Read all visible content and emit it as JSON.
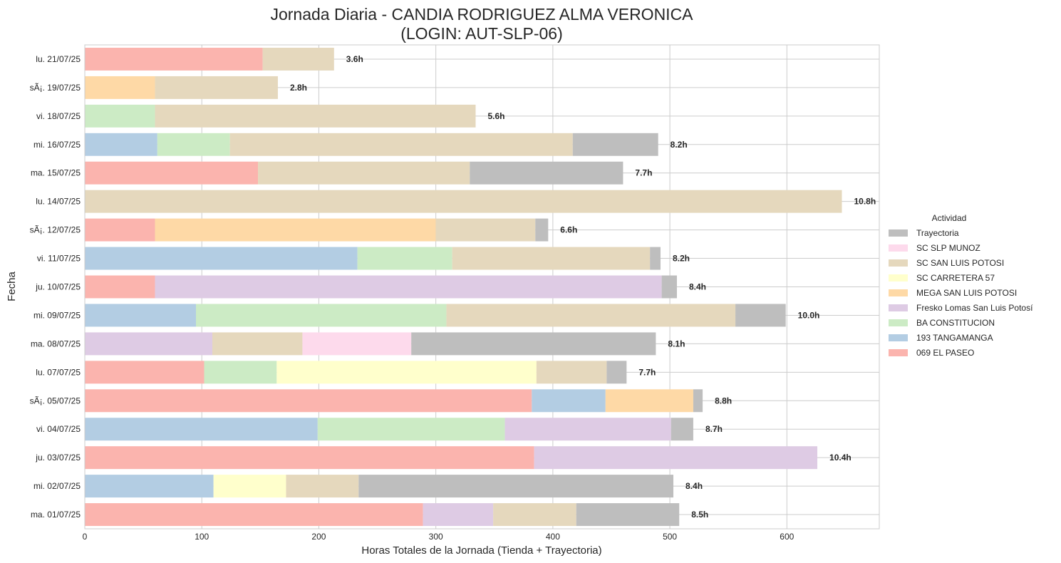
{
  "chart_data": {
    "type": "bar",
    "orientation": "horizontal",
    "stacked": true,
    "title_line1": "Jornada Diaria - CANDIA RODRIGUEZ ALMA VERONICA",
    "title_line2": "(LOGIN: AUT-SLP-06)",
    "xlabel": "Horas Totales de la Jornada (Tienda + Trayectoria)",
    "ylabel": "Fecha",
    "xlim": [
      0,
      680
    ],
    "xticks": [
      0,
      100,
      200,
      300,
      400,
      500,
      600
    ],
    "grid": true,
    "legend": {
      "title": "Actividad",
      "placement": "right",
      "order": [
        "Trayectoria",
        "SC SLP MUNOZ",
        "SC SAN LUIS POTOSI",
        "SC CARRETERA 57",
        "MEGA SAN LUIS POTOSI",
        "Fresko Lomas San Luis Potosí",
        "BA CONSTITUCION",
        "193 TANGAMANGA",
        "069 EL PASEO"
      ]
    },
    "stack_order": [
      "069 EL PASEO",
      "193 TANGAMANGA",
      "BA CONSTITUCION",
      "Fresko Lomas San Luis Potosí",
      "MEGA SAN LUIS POTOSI",
      "SC CARRETERA 57",
      "SC SAN LUIS POTOSI",
      "SC SLP MUNOZ",
      "Trayectoria"
    ],
    "colors": {
      "069 EL PASEO": "#fbb4ae",
      "193 TANGAMANGA": "#b3cde3",
      "BA CONSTITUCION": "#ccebc5",
      "Fresko Lomas San Luis Potosí": "#decbe4",
      "MEGA SAN LUIS POTOSI": "#fed9a6",
      "SC CARRETERA 57": "#ffffcc",
      "SC SAN LUIS POTOSI": "#e5d8bd",
      "SC SLP MUNOZ": "#fddaec",
      "Trayectoria": "#bebebe"
    },
    "categories": [
      "lu. 21/07/25",
      "sÃ¡. 19/07/25",
      "vi. 18/07/25",
      "mi. 16/07/25",
      "ma. 15/07/25",
      "lu. 14/07/25",
      "sÃ¡. 12/07/25",
      "vi. 11/07/25",
      "ju. 10/07/25",
      "mi. 09/07/25",
      "ma. 08/07/25",
      "lu. 07/07/25",
      "sÃ¡. 05/07/25",
      "vi. 04/07/25",
      "ju. 03/07/25",
      "mi. 02/07/25",
      "ma. 01/07/25"
    ],
    "totals": [
      "3.6h",
      "2.8h",
      "5.6h",
      "8.2h",
      "7.7h",
      "10.8h",
      "6.6h",
      "8.2h",
      "8.4h",
      "10.0h",
      "8.1h",
      "7.7h",
      "8.8h",
      "8.7h",
      "10.4h",
      "8.4h",
      "8.5h"
    ],
    "series": [
      {
        "name": "069 EL PASEO",
        "values": [
          152,
          0,
          0,
          0,
          148,
          0,
          60,
          0,
          60,
          0,
          0,
          102,
          382,
          0,
          384,
          0,
          289
        ]
      },
      {
        "name": "193 TANGAMANGA",
        "values": [
          0,
          0,
          0,
          62,
          0,
          0,
          0,
          233,
          0,
          95,
          0,
          0,
          63,
          199,
          0,
          110,
          0
        ]
      },
      {
        "name": "BA CONSTITUCION",
        "values": [
          0,
          0,
          60,
          62,
          0,
          0,
          0,
          81,
          0,
          214,
          0,
          62,
          0,
          160,
          0,
          0,
          0
        ]
      },
      {
        "name": "Fresko Lomas San Luis Potosí",
        "values": [
          0,
          0,
          0,
          0,
          0,
          0,
          0,
          0,
          433,
          0,
          109,
          0,
          0,
          142,
          242,
          0,
          60
        ]
      },
      {
        "name": "MEGA SAN LUIS POTOSI",
        "values": [
          0,
          60,
          0,
          0,
          0,
          0,
          240,
          0,
          0,
          0,
          0,
          0,
          75,
          0,
          0,
          0,
          0
        ]
      },
      {
        "name": "SC CARRETERA 57",
        "values": [
          0,
          0,
          0,
          0,
          0,
          0,
          0,
          0,
          0,
          0,
          0,
          222,
          0,
          0,
          0,
          62,
          0
        ]
      },
      {
        "name": "SC SAN LUIS POTOSI",
        "values": [
          61,
          105,
          274,
          293,
          181,
          647,
          85,
          169,
          0,
          247,
          77,
          60,
          0,
          0,
          0,
          62,
          71
        ]
      },
      {
        "name": "SC SLP MUNOZ",
        "values": [
          0,
          0,
          0,
          0,
          0,
          0,
          0,
          0,
          0,
          0,
          93,
          0,
          0,
          0,
          0,
          0,
          0
        ]
      },
      {
        "name": "Trayectoria",
        "values": [
          0,
          0,
          0,
          73,
          131,
          0,
          11,
          9,
          13,
          43,
          209,
          17,
          8,
          19,
          0,
          269,
          88
        ]
      }
    ]
  }
}
